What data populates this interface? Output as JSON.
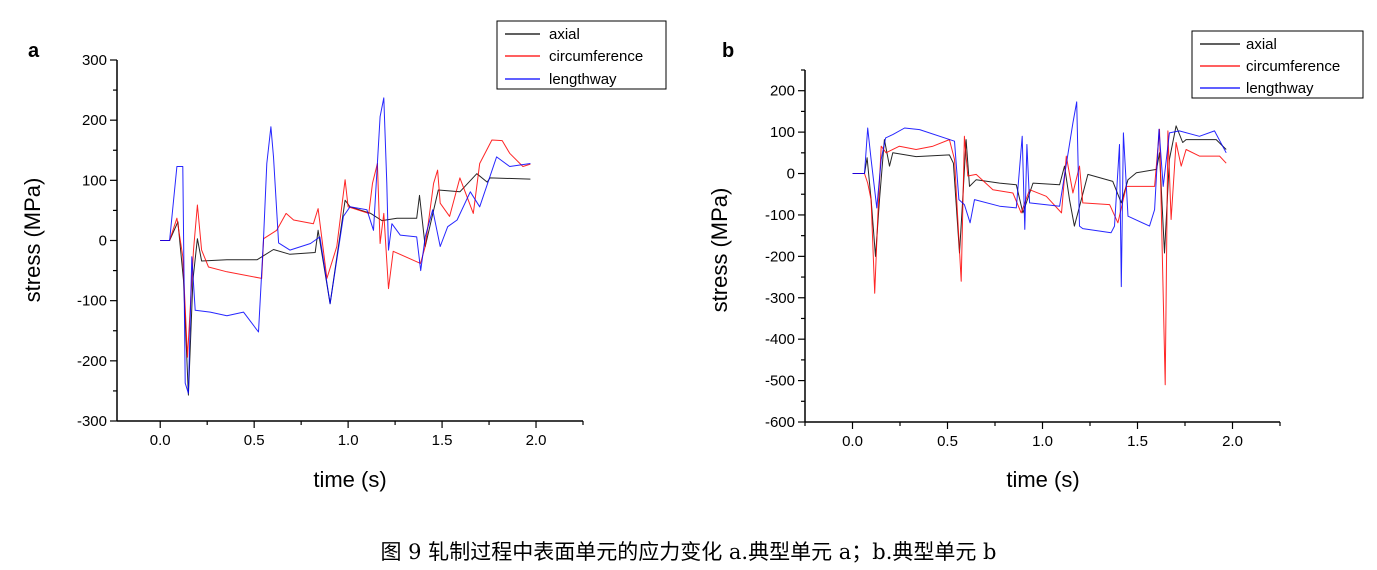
{
  "caption": "图 9  轧制过程中表面单元的应力变化  a.典型单元 a；b.典型单元 b",
  "chart_data": [
    {
      "type": "line",
      "panel_label": "a",
      "xlabel": "time (s)",
      "ylabel": "stress (MPa)",
      "xlim": [
        -0.23,
        2.25
      ],
      "ylim": [
        -300,
        300
      ],
      "xticks": [
        0.0,
        0.5,
        1.0,
        1.5,
        2.0
      ],
      "xtick_labels": [
        "0.0",
        "0.5",
        "1.0",
        "1.5",
        "2.0"
      ],
      "yticks": [
        -300,
        -200,
        -100,
        0,
        100,
        200,
        300
      ],
      "ytick_labels": [
        "-300",
        "-200",
        "-100",
        "0",
        "100",
        "200",
        "300"
      ],
      "grid": false,
      "legend_position": "top-right",
      "series": [
        {
          "name": "axial",
          "color": "#000000",
          "points": [
            [
              0,
              0
            ],
            [
              0.05,
              0
            ],
            [
              0.094,
              31
            ],
            [
              0.124,
              -66
            ],
            [
              0.15,
              -257
            ],
            [
              0.174,
              -66
            ],
            [
              0.198,
              3
            ],
            [
              0.22,
              -34
            ],
            [
              0.355,
              -32
            ],
            [
              0.515,
              -32
            ],
            [
              0.603,
              -15
            ],
            [
              0.69,
              -23
            ],
            [
              0.825,
              -20
            ],
            [
              0.84,
              17
            ],
            [
              0.904,
              -105
            ],
            [
              0.984,
              67
            ],
            [
              1.01,
              56
            ],
            [
              1.12,
              45
            ],
            [
              1.18,
              33
            ],
            [
              1.26,
              37
            ],
            [
              1.365,
              37
            ],
            [
              1.38,
              75
            ],
            [
              1.41,
              -10
            ],
            [
              1.48,
              84
            ],
            [
              1.595,
              81
            ],
            [
              1.685,
              111
            ],
            [
              1.74,
              97
            ],
            [
              1.755,
              104
            ],
            [
              1.97,
              102
            ]
          ]
        },
        {
          "name": "circumference",
          "color": "#ff0000",
          "points": [
            [
              0,
              0
            ],
            [
              0.05,
              0
            ],
            [
              0.089,
              37
            ],
            [
              0.12,
              -27
            ],
            [
              0.145,
              -194
            ],
            [
              0.177,
              -16
            ],
            [
              0.198,
              59
            ],
            [
              0.22,
              -16
            ],
            [
              0.257,
              -44
            ],
            [
              0.355,
              -52
            ],
            [
              0.54,
              -63
            ],
            [
              0.55,
              3
            ],
            [
              0.62,
              17
            ],
            [
              0.67,
              45
            ],
            [
              0.71,
              34
            ],
            [
              0.815,
              28
            ],
            [
              0.84,
              53
            ],
            [
              0.887,
              -63
            ],
            [
              0.94,
              -10
            ],
            [
              0.984,
              101
            ],
            [
              1.0,
              56
            ],
            [
              1.11,
              45
            ],
            [
              1.13,
              95
            ],
            [
              1.156,
              128
            ],
            [
              1.17,
              -5
            ],
            [
              1.19,
              45
            ],
            [
              1.215,
              -80
            ],
            [
              1.24,
              -18
            ],
            [
              1.385,
              -38
            ],
            [
              1.41,
              -10
            ],
            [
              1.455,
              95
            ],
            [
              1.476,
              117
            ],
            [
              1.49,
              62
            ],
            [
              1.54,
              40
            ],
            [
              1.595,
              104
            ],
            [
              1.666,
              45
            ],
            [
              1.7,
              128
            ],
            [
              1.765,
              167
            ],
            [
              1.82,
              166
            ],
            [
              1.86,
              145
            ],
            [
              1.93,
              123
            ],
            [
              1.97,
              127
            ]
          ]
        },
        {
          "name": "lengthway",
          "color": "#0000ff",
          "points": [
            [
              0,
              0
            ],
            [
              0.05,
              0
            ],
            [
              0.089,
              123
            ],
            [
              0.12,
              123
            ],
            [
              0.133,
              -237
            ],
            [
              0.15,
              -254
            ],
            [
              0.168,
              -27
            ],
            [
              0.186,
              -116
            ],
            [
              0.266,
              -119
            ],
            [
              0.355,
              -125
            ],
            [
              0.443,
              -119
            ],
            [
              0.523,
              -152
            ],
            [
              0.55,
              6
            ],
            [
              0.567,
              128
            ],
            [
              0.589,
              189
            ],
            [
              0.603,
              139
            ],
            [
              0.63,
              -4
            ],
            [
              0.69,
              -16
            ],
            [
              0.8,
              -5
            ],
            [
              0.85,
              6
            ],
            [
              0.904,
              -105
            ],
            [
              0.975,
              40
            ],
            [
              1.01,
              56
            ],
            [
              1.1,
              51
            ],
            [
              1.135,
              17
            ],
            [
              1.17,
              206
            ],
            [
              1.19,
              237
            ],
            [
              1.206,
              95
            ],
            [
              1.215,
              -16
            ],
            [
              1.233,
              28
            ],
            [
              1.277,
              9
            ],
            [
              1.365,
              6
            ],
            [
              1.386,
              -50
            ],
            [
              1.41,
              6
            ],
            [
              1.45,
              51
            ],
            [
              1.49,
              -10
            ],
            [
              1.53,
              23
            ],
            [
              1.58,
              34
            ],
            [
              1.65,
              81
            ],
            [
              1.7,
              56
            ],
            [
              1.79,
              139
            ],
            [
              1.86,
              123
            ],
            [
              1.97,
              128
            ]
          ]
        }
      ]
    },
    {
      "type": "line",
      "panel_label": "b",
      "xlabel": "time (s)",
      "ylabel": "stress (MPa)",
      "xlim": [
        -0.25,
        2.25
      ],
      "ylim": [
        -600,
        250
      ],
      "xticks": [
        0.0,
        0.5,
        1.0,
        1.5,
        2.0
      ],
      "xtick_labels": [
        "0.0",
        "0.5",
        "1.0",
        "1.5",
        "2.0"
      ],
      "yticks": [
        -600,
        -500,
        -400,
        -300,
        -200,
        -100,
        0,
        100,
        200
      ],
      "ytick_labels": [
        "-600",
        "-500",
        "-400",
        "-300",
        "-200",
        "-100",
        "0",
        "100",
        "200"
      ],
      "grid": false,
      "legend_position": "top-right",
      "series": [
        {
          "name": "axial",
          "color": "#000000",
          "points": [
            [
              0,
              0
            ],
            [
              0.063,
              0
            ],
            [
              0.077,
              38
            ],
            [
              0.098,
              -63
            ],
            [
              0.121,
              -200
            ],
            [
              0.142,
              -63
            ],
            [
              0.168,
              82
            ],
            [
              0.195,
              18
            ],
            [
              0.212,
              50
            ],
            [
              0.335,
              41
            ],
            [
              0.51,
              45
            ],
            [
              0.531,
              25
            ],
            [
              0.563,
              -192
            ],
            [
              0.58,
              -63
            ],
            [
              0.598,
              82
            ],
            [
              0.616,
              -31
            ],
            [
              0.651,
              -15
            ],
            [
              0.774,
              -23
            ],
            [
              0.862,
              -27
            ],
            [
              0.897,
              -95
            ],
            [
              0.95,
              -23
            ],
            [
              1.09,
              -27
            ],
            [
              1.116,
              18
            ],
            [
              1.142,
              -63
            ],
            [
              1.168,
              -127
            ],
            [
              1.204,
              -63
            ],
            [
              1.239,
              -2
            ],
            [
              1.37,
              -19
            ],
            [
              1.415,
              -71
            ],
            [
              1.45,
              -15
            ],
            [
              1.494,
              2
            ],
            [
              1.6,
              10
            ],
            [
              1.616,
              50
            ],
            [
              1.642,
              -192
            ],
            [
              1.668,
              34
            ],
            [
              1.703,
              115
            ],
            [
              1.738,
              75
            ],
            [
              1.756,
              82
            ],
            [
              1.914,
              82
            ],
            [
              1.967,
              58
            ]
          ]
        },
        {
          "name": "circumference",
          "color": "#ff0000",
          "points": [
            [
              0,
              0
            ],
            [
              0.063,
              0
            ],
            [
              0.08,
              -23
            ],
            [
              0.098,
              -63
            ],
            [
              0.117,
              -289
            ],
            [
              0.133,
              -103
            ],
            [
              0.151,
              66
            ],
            [
              0.177,
              50
            ],
            [
              0.247,
              66
            ],
            [
              0.335,
              58
            ],
            [
              0.423,
              66
            ],
            [
              0.51,
              82
            ],
            [
              0.537,
              34
            ],
            [
              0.572,
              -260
            ],
            [
              0.589,
              90
            ],
            [
              0.607,
              -6
            ],
            [
              0.651,
              -2
            ],
            [
              0.739,
              -39
            ],
            [
              0.844,
              -47
            ],
            [
              0.888,
              -95
            ],
            [
              0.932,
              -39
            ],
            [
              1.02,
              -55
            ],
            [
              1.1,
              -95
            ],
            [
              1.125,
              42
            ],
            [
              1.16,
              -47
            ],
            [
              1.195,
              18
            ],
            [
              1.212,
              -71
            ],
            [
              1.353,
              -75
            ],
            [
              1.397,
              -119
            ],
            [
              1.441,
              -31
            ],
            [
              1.511,
              -31
            ],
            [
              1.59,
              -31
            ],
            [
              1.616,
              107
            ],
            [
              1.646,
              -510
            ],
            [
              1.66,
              103
            ],
            [
              1.677,
              -111
            ],
            [
              1.703,
              75
            ],
            [
              1.73,
              18
            ],
            [
              1.756,
              58
            ],
            [
              1.826,
              42
            ],
            [
              1.932,
              42
            ],
            [
              1.967,
              25
            ]
          ]
        },
        {
          "name": "lengthway",
          "color": "#0000ff",
          "points": [
            [
              0,
              0
            ],
            [
              0.063,
              0
            ],
            [
              0.08,
              110
            ],
            [
              0.098,
              34
            ],
            [
              0.128,
              -83
            ],
            [
              0.151,
              34
            ],
            [
              0.174,
              86
            ],
            [
              0.212,
              94
            ],
            [
              0.274,
              110
            ],
            [
              0.353,
              106
            ],
            [
              0.537,
              78
            ],
            [
              0.56,
              -63
            ],
            [
              0.589,
              -75
            ],
            [
              0.619,
              -119
            ],
            [
              0.642,
              -63
            ],
            [
              0.774,
              -79
            ],
            [
              0.862,
              -83
            ],
            [
              0.893,
              90
            ],
            [
              0.907,
              -135
            ],
            [
              0.918,
              70
            ],
            [
              0.932,
              -71
            ],
            [
              1.09,
              -79
            ],
            [
              1.16,
              122
            ],
            [
              1.18,
              173
            ],
            [
              1.195,
              -127
            ],
            [
              1.212,
              -133
            ],
            [
              1.361,
              -143
            ],
            [
              1.379,
              -127
            ],
            [
              1.405,
              70
            ],
            [
              1.415,
              -273
            ],
            [
              1.426,
              98
            ],
            [
              1.45,
              -103
            ],
            [
              1.563,
              -127
            ],
            [
              1.59,
              -87
            ],
            [
              1.613,
              107
            ],
            [
              1.635,
              -31
            ],
            [
              1.668,
              98
            ],
            [
              1.72,
              103
            ],
            [
              1.826,
              90
            ],
            [
              1.905,
              103
            ],
            [
              1.967,
              50
            ]
          ]
        }
      ]
    }
  ]
}
